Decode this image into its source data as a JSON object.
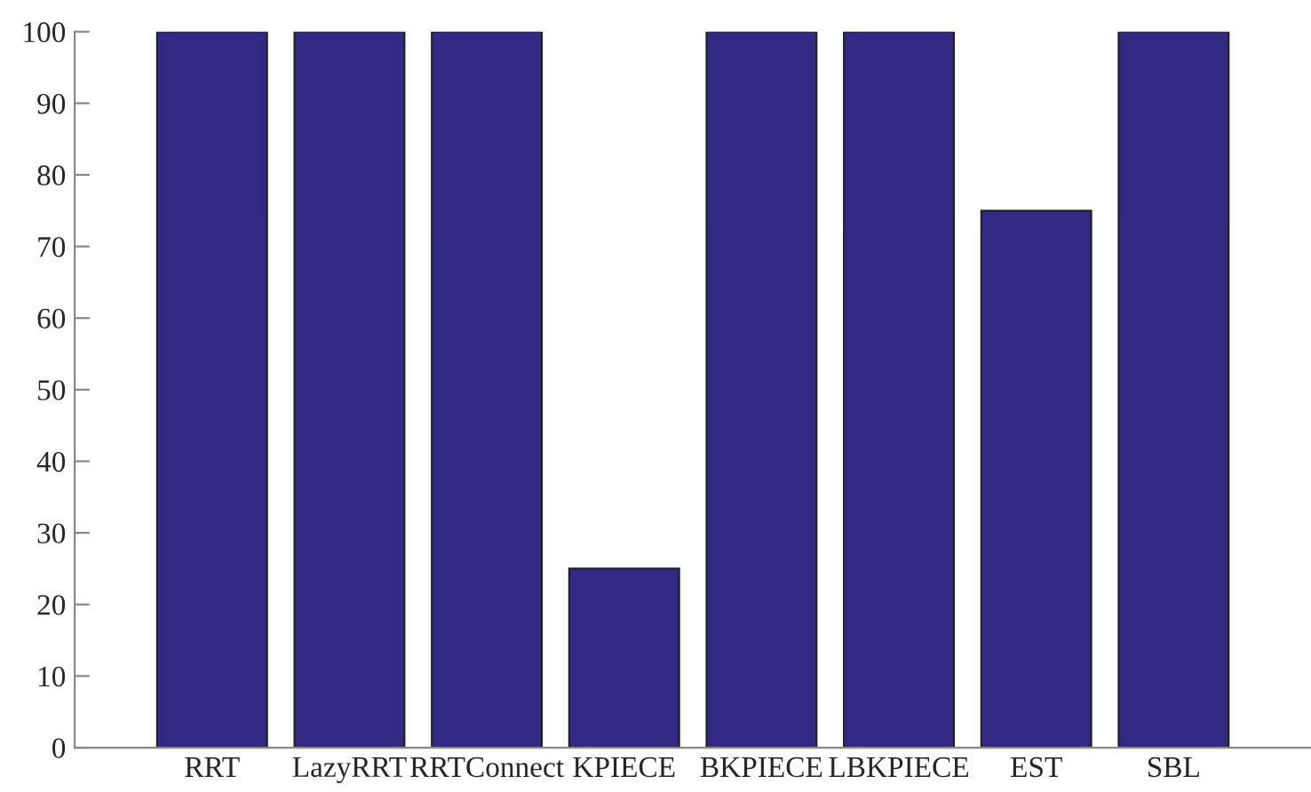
{
  "chart_data": {
    "type": "bar",
    "categories": [
      "RRT",
      "LazyRRT",
      "RRTConnect",
      "KPIECE",
      "BKPIECE",
      "LBKPIECE",
      "EST",
      "SBL"
    ],
    "values": [
      100,
      100,
      100,
      25,
      100,
      100,
      75,
      100
    ],
    "color": "#332a85",
    "ylim": [
      0,
      100
    ],
    "yticks": [
      0,
      10,
      20,
      30,
      40,
      50,
      60,
      70,
      80,
      90,
      100
    ],
    "grid": false,
    "legend": false
  }
}
